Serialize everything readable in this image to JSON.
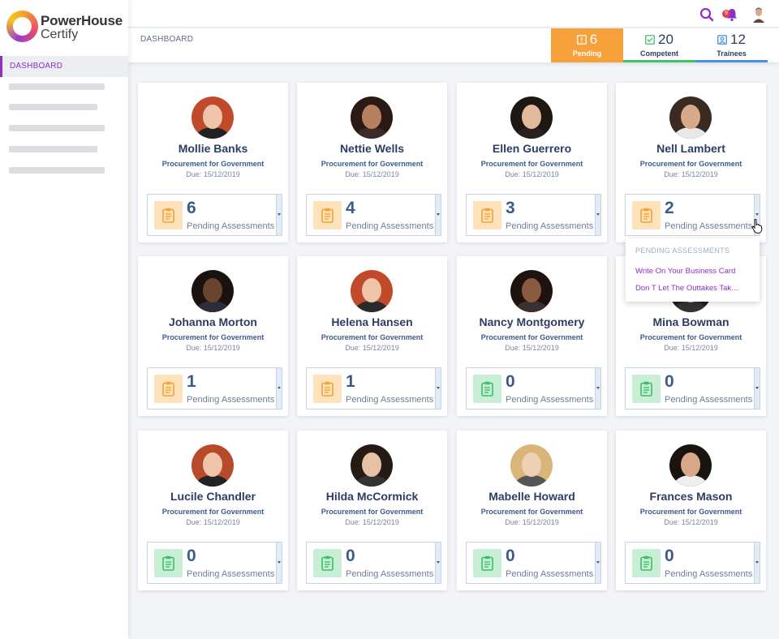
{
  "app": {
    "brand_title": "PowerHouse",
    "brand_sub": "Certify"
  },
  "sidebar": {
    "active_item": "DASHBOARD"
  },
  "topbar": {
    "notification_count": "9",
    "icons": [
      "search-icon",
      "bell-icon",
      "user-avatar"
    ]
  },
  "header": {
    "breadcrumb": "DASHBOARD",
    "stats": [
      {
        "value": "6",
        "label": "Pending",
        "icon": "alert-icon",
        "color": "#f7a13a"
      },
      {
        "value": "20",
        "label": "Competent",
        "icon": "check-icon",
        "color": "#3cc46b"
      },
      {
        "value": "12",
        "label": "Trainees",
        "icon": "user-icon",
        "color": "#4a90e2"
      }
    ]
  },
  "cards": [
    {
      "name": "Mollie Banks",
      "role": "Procurement for Government",
      "due": "Due: 15/12/2019",
      "pending": "6",
      "pending_label": "Pending Assessments",
      "status": "orange"
    },
    {
      "name": "Nettie Wells",
      "role": "Procurement for Government",
      "due": "Due: 15/12/2019",
      "pending": "4",
      "pending_label": "Pending Assessments",
      "status": "orange"
    },
    {
      "name": "Ellen Guerrero",
      "role": "Procurement for Government",
      "due": "Due: 15/12/2019",
      "pending": "3",
      "pending_label": "Pending Assessments",
      "status": "orange"
    },
    {
      "name": "Nell Lambert",
      "role": "Procurement for Government",
      "due": "Due: 15/12/2019",
      "pending": "2",
      "pending_label": "Pending Assessments",
      "status": "orange"
    },
    {
      "name": "Johanna Morton",
      "role": "Procurement for Government",
      "due": "Due: 15/12/2019",
      "pending": "1",
      "pending_label": "Pending Assessments",
      "status": "orange"
    },
    {
      "name": "Helena Hansen",
      "role": "Procurement for Government",
      "due": "Due: 15/12/2019",
      "pending": "1",
      "pending_label": "Pending Assessments",
      "status": "orange"
    },
    {
      "name": "Nancy Montgomery",
      "role": "Procurement for Government",
      "due": "Due: 15/12/2019",
      "pending": "0",
      "pending_label": "Pending Assessments",
      "status": "green"
    },
    {
      "name": "Mina Bowman",
      "role": "Procurement for Government",
      "due": "Due: 15/12/2019",
      "pending": "0",
      "pending_label": "Pending Assessments",
      "status": "green"
    },
    {
      "name": "Lucile Chandler",
      "role": "Procurement for Government",
      "due": "Due: 15/12/2019",
      "pending": "0",
      "pending_label": "Pending Assessments",
      "status": "green"
    },
    {
      "name": "Hilda McCormick",
      "role": "Procurement for Government",
      "due": "Due: 15/12/2019",
      "pending": "0",
      "pending_label": "Pending Assessments",
      "status": "green"
    },
    {
      "name": "Mabelle Howard",
      "role": "Procurement for Government",
      "due": "Due: 15/12/2019",
      "pending": "0",
      "pending_label": "Pending Assessments",
      "status": "green"
    },
    {
      "name": "Frances Mason",
      "role": "Procurement for Government",
      "due": "Due: 15/12/2019",
      "pending": "0",
      "pending_label": "Pending Assessments",
      "status": "green"
    }
  ],
  "dropdown": {
    "heading": "PENDING ASSESSMENTS",
    "items": [
      "Write On Your Business Card",
      "Don T Let The Outtakes Tak…"
    ]
  },
  "colors": {
    "accent": "#8e2fc7",
    "pending": "#f7a13a",
    "competent": "#3cc46b",
    "trainees": "#4a90e2"
  }
}
